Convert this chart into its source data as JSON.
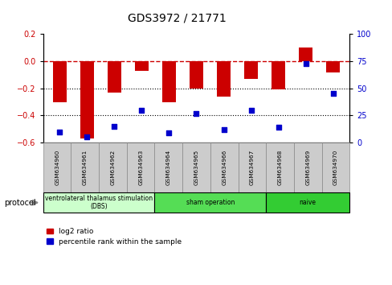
{
  "title": "GDS3972 / 21771",
  "samples": [
    "GSM634960",
    "GSM634961",
    "GSM634962",
    "GSM634963",
    "GSM634964",
    "GSM634965",
    "GSM634966",
    "GSM634967",
    "GSM634968",
    "GSM634969",
    "GSM634970"
  ],
  "log2_ratio": [
    -0.3,
    -0.57,
    -0.23,
    -0.07,
    -0.3,
    -0.2,
    -0.26,
    -0.13,
    -0.21,
    0.1,
    -0.08
  ],
  "percentile_rank": [
    10,
    5,
    15,
    30,
    9,
    27,
    12,
    30,
    14,
    73,
    45
  ],
  "bar_color": "#cc0000",
  "dot_color": "#0000cc",
  "ylim_left": [
    -0.6,
    0.2
  ],
  "ylim_right": [
    0,
    100
  ],
  "yticks_left": [
    -0.6,
    -0.4,
    -0.2,
    0.0,
    0.2
  ],
  "yticks_right": [
    0,
    25,
    50,
    75,
    100
  ],
  "hline_y": 0.0,
  "dotted_lines": [
    -0.2,
    -0.4
  ],
  "groups": [
    {
      "label": "ventrolateral thalamus stimulation\n(DBS)",
      "start": 0,
      "end": 3,
      "color": "#ccffcc"
    },
    {
      "label": "sham operation",
      "start": 4,
      "end": 7,
      "color": "#55dd55"
    },
    {
      "label": "naive",
      "start": 8,
      "end": 10,
      "color": "#33cc33"
    }
  ],
  "protocol_label": "protocol",
  "legend_red": "log2 ratio",
  "legend_blue": "percentile rank within the sample",
  "bar_width": 0.5
}
